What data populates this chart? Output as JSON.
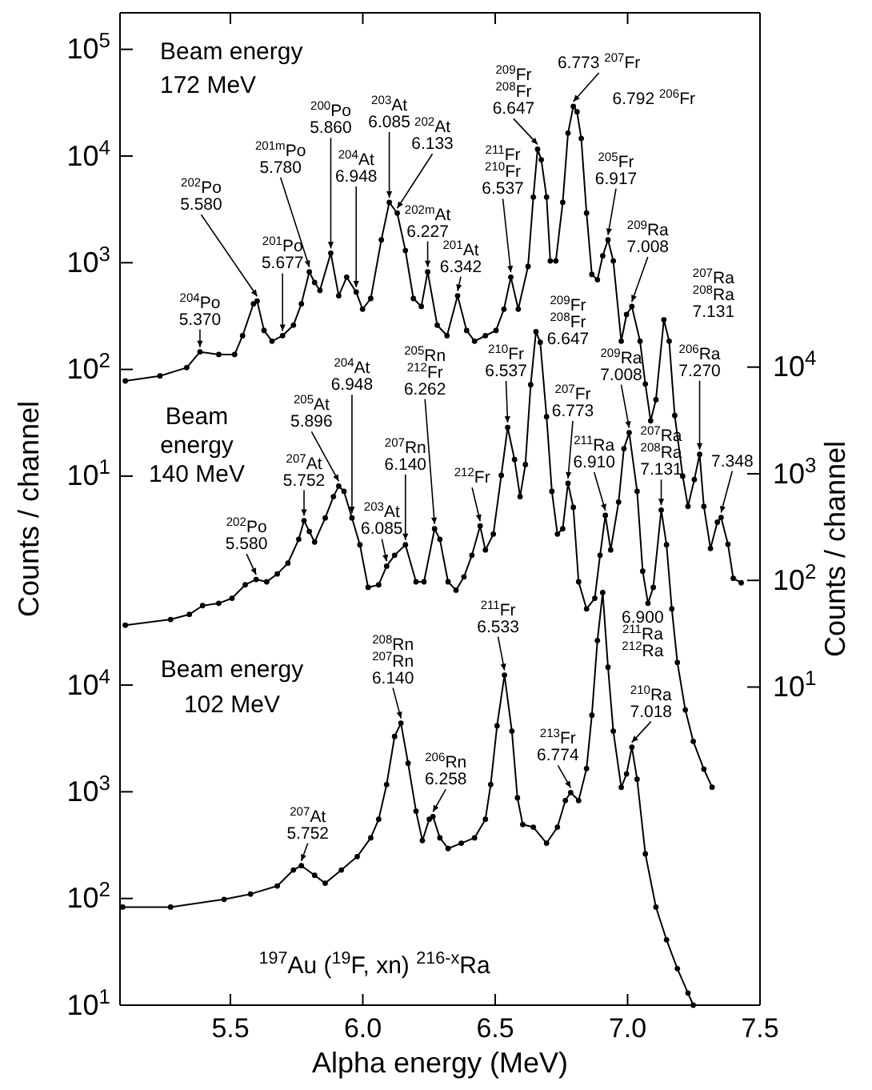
{
  "chart_data": [
    {
      "type": "line",
      "log": true,
      "marker": "circle",
      "line_style": "solid",
      "tick_labels": "y",
      "xlim": [
        5.083,
        7.5
      ],
      "xticks": [
        5.5,
        6,
        6.5,
        7,
        7.5
      ],
      "ylim": [
        0.00011,
        220000
      ],
      "yticks": [
        {
          "value": 10,
          "label": "10$^{1}$"
        },
        {
          "value": 100,
          "label": "10$^{2}$"
        },
        {
          "value": 1000,
          "label": "10$^{3}$"
        },
        {
          "value": 10000,
          "label": "10$^{4}$"
        },
        {
          "value": 100000,
          "label": "10$^{5}$"
        }
      ],
      "series": [
        {
          "color": "#000000",
          "x": [
            5.103,
            5.234,
            5.335,
            5.385,
            5.456,
            5.516,
            5.546,
            5.587,
            5.601,
            5.627,
            5.657,
            5.697,
            5.738,
            5.768,
            5.798,
            5.818,
            5.838,
            5.879,
            5.909,
            5.939,
            5.975,
            5.999,
            6.03,
            6.07,
            6.1,
            6.13,
            6.161,
            6.191,
            6.221,
            6.245,
            6.281,
            6.318,
            6.358,
            6.392,
            6.422,
            6.463,
            6.503,
            6.533,
            6.559,
            6.587,
            6.624,
            6.644,
            6.66,
            6.674,
            6.694,
            6.708,
            6.729,
            6.755,
            6.775,
            6.795,
            6.809,
            6.825,
            6.845,
            6.865,
            6.886,
            6.906,
            6.926,
            6.946,
            6.976,
            6.996,
            7.016,
            7.047,
            7.067,
            7.087,
            7.107,
            7.137,
            7.157,
            7.178,
            7.208,
            7.228,
            7.252,
            7.272,
            7.288,
            7.313,
            7.339,
            7.353,
            7.379,
            7.399,
            7.429
          ],
          "values": [
            78,
            87,
            104,
            146,
            138,
            138,
            207,
            412,
            437,
            232,
            184,
            207,
            260,
            412,
            822,
            653,
            550,
            1230,
            490,
            733,
            531,
            367,
            462,
            1640,
            3670,
            2920,
            1300,
            462,
            389,
            822,
            260,
            207,
            490,
            232,
            184,
            207,
            232,
            367,
            733,
            367,
            923,
            4120,
            11600,
            9230,
            4120,
            1040,
            1040,
            3670,
            16400,
            29200,
            26000,
            14600,
            2920,
            776,
            692,
            1160,
            1640,
            1040,
            184,
            327,
            389,
            184,
            73,
            33,
            52,
            292,
            184,
            37,
            10,
            5.2,
            9.3,
            16,
            5.2,
            2.1,
            3.7,
            4.1,
            2.3,
            1.1,
            1.0
          ]
        }
      ],
      "annotations": [
        "Beam energy\n172 MeV",
        {
          "text": "$^{204}$Po\n5.370",
          "x": 5.385,
          "y": 146
        },
        {
          "text": "$^{202}$Po\n5.580",
          "x": 5.601,
          "y": 437
        },
        {
          "text": "$^{201}$Po\n5.677",
          "x": 5.697,
          "y": 207
        },
        {
          "text": "$^{201m}$Po\n5.780",
          "x": 5.798,
          "y": 822
        },
        {
          "text": "$^{200}$Po\n5.860",
          "x": 5.879,
          "y": 1230
        },
        {
          "text": "$^{204}$At\n6.948",
          "x": 5.975,
          "y": 531
        },
        {
          "text": "$^{203}$At\n6.085",
          "x": 6.1,
          "y": 3670
        },
        {
          "text": "$^{202}$At\n6.133",
          "x": 6.13,
          "y": 2920
        },
        {
          "text": "$^{202m}$At\n6.227",
          "x": 6.245,
          "y": 822
        },
        {
          "text": "$^{201}$At\n6.342",
          "x": 6.358,
          "y": 490
        },
        {
          "text": "$^{211}$Fr\n$^{210}$Fr\n6.537",
          "x": 6.559,
          "y": 733
        },
        {
          "text": "$^{209}$Fr\n$^{208}$Fr\n6.647",
          "x": 6.66,
          "y": 11600
        },
        {
          "text": "6.773 $^{207}$Fr",
          "x": 6.795,
          "y": 29200
        },
        {
          "text": "6.792 $^{206}$Fr",
          "x": 6.809,
          "y": 26000
        },
        {
          "text": "$^{205}$Fr\n6.917",
          "x": 6.926,
          "y": 1640
        },
        {
          "text": "$^{209}$Ra\n7.008",
          "x": 7.016,
          "y": 389
        },
        {
          "text": "$^{207}$Ra\n$^{208}$Ra\n7.131",
          "x": 7.137,
          "y": 292
        },
        {
          "text": "$^{206}$Ra\n7.270",
          "x": 7.272,
          "y": 16
        },
        {
          "text": "7.348",
          "x": 7.353,
          "y": 4.1
        }
      ]
    },
    {
      "type": "line",
      "log": true,
      "marker": "circle",
      "line_style": "solid",
      "tick_labels": "y",
      "xlim": [
        5.083,
        7.5
      ],
      "ylim": [
        0.0104,
        21000000
      ],
      "yticks": [
        {
          "value": 10,
          "label": "10$^{1}$"
        },
        {
          "value": 100,
          "label": "10$^{2}$"
        },
        {
          "value": 1000,
          "label": "10$^{3}$"
        },
        {
          "value": 10000,
          "label": "10$^{4}$"
        }
      ],
      "ylabel": "Counts / channel",
      "series": [
        {
          "color": "#000000",
          "x": [
            5.103,
            5.274,
            5.345,
            5.395,
            5.456,
            5.506,
            5.556,
            5.597,
            5.637,
            5.677,
            5.717,
            5.758,
            5.778,
            5.798,
            5.818,
            5.858,
            5.889,
            5.909,
            5.929,
            5.959,
            5.989,
            6.02,
            6.06,
            6.09,
            6.12,
            6.161,
            6.201,
            6.231,
            6.271,
            6.291,
            6.322,
            6.352,
            6.382,
            6.412,
            6.443,
            6.463,
            6.493,
            6.523,
            6.547,
            6.573,
            6.594,
            6.614,
            6.634,
            6.654,
            6.67,
            6.694,
            6.714,
            6.735,
            6.755,
            6.775,
            6.795,
            6.815,
            6.845,
            6.876,
            6.896,
            6.916,
            6.936,
            6.966,
            6.986,
            7.006,
            7.036,
            7.057,
            7.077,
            7.097,
            7.127,
            7.147,
            7.167,
            7.188,
            7.218,
            7.248,
            7.288,
            7.319
          ],
          "values": [
            38,
            43,
            48,
            58,
            61,
            68,
            91,
            102,
            97,
            115,
            145,
            243,
            363,
            288,
            229,
            385,
            610,
            767,
            684,
            385,
            216,
            86,
            91,
            136,
            172,
            216,
            97,
            97,
            305,
            243,
            97,
            81,
            108,
            172,
            324,
            193,
            272,
            966,
            2720,
            1360,
            610,
            1220,
            6840,
            21500,
            17100,
            3430,
            684,
            272,
            305,
            813,
            484,
            97,
            54,
            68,
            172,
            407,
            193,
            543,
            1720,
            2430,
            684,
            122,
            61,
            86,
            457,
            216,
            54,
            17,
            6.1,
            3.1,
            1.7,
            1.15
          ]
        }
      ],
      "annotations": [
        "Beam\nenergy\n140 MeV",
        {
          "text": "$^{202}$Po\n5.580",
          "x": 5.597,
          "y": 102
        },
        {
          "text": "$^{207}$At\n5.752",
          "x": 5.778,
          "y": 363
        },
        {
          "text": "$^{205}$At\n5.896",
          "x": 5.909,
          "y": 767
        },
        {
          "text": "$^{204}$At\n6.948",
          "x": 5.959,
          "y": 385
        },
        {
          "text": "$^{203}$At\n6.085",
          "x": 6.09,
          "y": 136
        },
        {
          "text": "$^{207}$Rn\n6.140",
          "x": 6.161,
          "y": 216
        },
        {
          "text": "$^{205}$Rn\n$^{212}$Fr\n6.262",
          "x": 6.271,
          "y": 305
        },
        {
          "text": "$^{212}$Fr",
          "x": 6.443,
          "y": 324
        },
        {
          "text": "$^{210}$Fr\n6.537",
          "x": 6.547,
          "y": 2720
        },
        {
          "text": "$^{209}$Fr\n$^{208}$Fr\n6.647",
          "x": 6.654,
          "y": 21500
        },
        {
          "text": "$^{207}$Fr\n6.773",
          "x": 6.775,
          "y": 813
        },
        {
          "text": "$^{211}$Ra\n6.910",
          "x": 6.916,
          "y": 407
        },
        {
          "text": "$^{209}$Ra\n7.008",
          "x": 7.006,
          "y": 2430
        },
        {
          "text": "$^{207}$Ra\n$^{208}$Ra\n7.131",
          "x": 7.127,
          "y": 457
        }
      ]
    },
    {
      "type": "line",
      "log": true,
      "marker": "circle",
      "line_style": "solid",
      "xlim": [
        5.083,
        7.5
      ],
      "xticks": [
        {
          "value": 5.5,
          "label": "5.5"
        },
        {
          "value": 6,
          "label": "6.0"
        },
        {
          "value": 6.5,
          "label": "6.5"
        },
        {
          "value": 7,
          "label": "7.0"
        },
        {
          "value": 7.5,
          "label": "7.5"
        }
      ],
      "xlabel": "Alpha energy (MeV)",
      "ylim": [
        10,
        20000000000
      ],
      "yticks": [
        {
          "value": 10,
          "label": "10$^{1}$"
        },
        {
          "value": 100,
          "label": "10$^{2}$"
        },
        {
          "value": 1000,
          "label": "10$^{3}$"
        },
        {
          "value": 10000,
          "label": "10$^{4}$"
        }
      ],
      "ylabel": "Counts / channel",
      "series": [
        {
          "color": "#000000",
          "x": [
            5.093,
            5.274,
            5.476,
            5.576,
            5.677,
            5.738,
            5.768,
            5.818,
            5.858,
            5.919,
            5.979,
            6.03,
            6.06,
            6.09,
            6.12,
            6.144,
            6.171,
            6.201,
            6.225,
            6.251,
            6.265,
            6.291,
            6.322,
            6.372,
            6.422,
            6.463,
            6.483,
            6.507,
            6.535,
            6.563,
            6.584,
            6.604,
            6.644,
            6.694,
            6.735,
            6.765,
            6.785,
            6.815,
            6.845,
            6.865,
            6.886,
            6.906,
            6.926,
            6.946,
            6.976,
            6.996,
            7.016,
            7.036,
            7.067,
            7.107,
            7.147,
            7.188,
            7.228,
            7.248
          ],
          "values": [
            83,
            83,
            98,
            110,
            131,
            185,
            203,
            165,
            139,
            185,
            247,
            370,
            553,
            1170,
            3300,
            4400,
            1850,
            658,
            349,
            553,
            586,
            370,
            294,
            330,
            370,
            553,
            1170,
            4150,
            12400,
            3700,
            877,
            493,
            466,
            330,
            466,
            828,
            984,
            828,
            1650,
            5220,
            26200,
            73600,
            14700,
            3700,
            1100,
            1470,
            2620,
            1310,
            262,
            83,
            41,
            22,
            13,
            10
          ]
        }
      ],
      "annotations": [
        "Beam energy\n102 MeV",
        "$^{197}$Au ($^{19}$F, xn) $^{216-x}$Ra",
        {
          "text": "$^{207}$At\n5.752",
          "x": 5.768,
          "y": 203
        },
        {
          "text": "$^{208}$Rn\n$^{207}$Rn\n6.140",
          "x": 6.144,
          "y": 4400
        },
        {
          "text": "$^{206}$Rn\n6.258",
          "x": 6.265,
          "y": 586
        },
        {
          "text": "$^{211}$Fr\n6.533",
          "x": 6.535,
          "y": 12400
        },
        {
          "text": "$^{213}$Fr\n6.774",
          "x": 6.785,
          "y": 984
        },
        {
          "text": "6.900\n$^{211}$Ra\n$^{212}$Ra",
          "x": 6.906,
          "y": 73600
        },
        {
          "text": "$^{210}$Ra\n7.018",
          "x": 7.016,
          "y": 2620
        }
      ]
    }
  ]
}
